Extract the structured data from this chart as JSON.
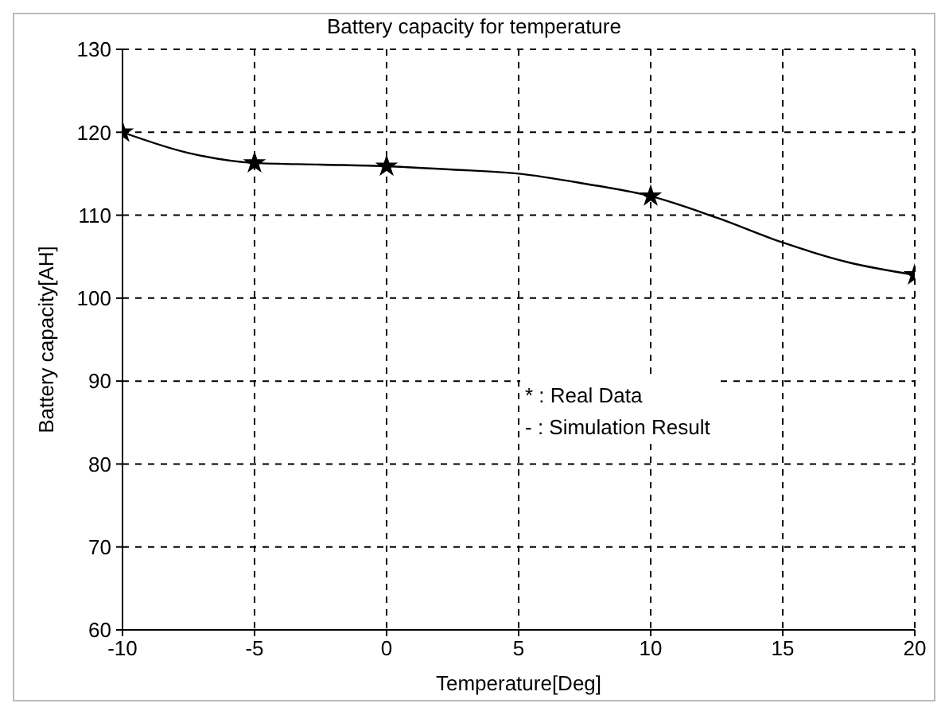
{
  "chart_data": {
    "type": "scatter",
    "title": "Battery capacity for temperature",
    "xlabel": "Temperature[Deg]",
    "ylabel": "Battery capacity[AH]",
    "x": [
      -10,
      -5,
      0,
      10,
      20
    ],
    "series": [
      {
        "color": "#000000",
        "marker": "star",
        "values": [
          120,
          116.3,
          115.9,
          112.3,
          102.8
        ]
      },
      {
        "type": "line",
        "color": "#000000",
        "marker": "none",
        "line_style": "solid",
        "x": [
          -10,
          -7.5,
          -5,
          -2.5,
          0,
          2.5,
          5,
          7.5,
          10,
          12.5,
          15,
          17.5,
          20
        ],
        "values": [
          120,
          117.5,
          116.3,
          116.1,
          115.9,
          115.5,
          115,
          113.8,
          112.3,
          109.7,
          106.7,
          104.3,
          102.8
        ]
      }
    ],
    "xlim": [
      -10,
      20
    ],
    "xticks": [
      -10,
      -5,
      0,
      5,
      10,
      15,
      20
    ],
    "ylim": [
      60,
      130
    ],
    "yticks": [
      60,
      70,
      80,
      90,
      100,
      110,
      120,
      130
    ],
    "grid": true,
    "annotations": [
      "* : Real Data",
      "- : Simulation Result"
    ]
  }
}
